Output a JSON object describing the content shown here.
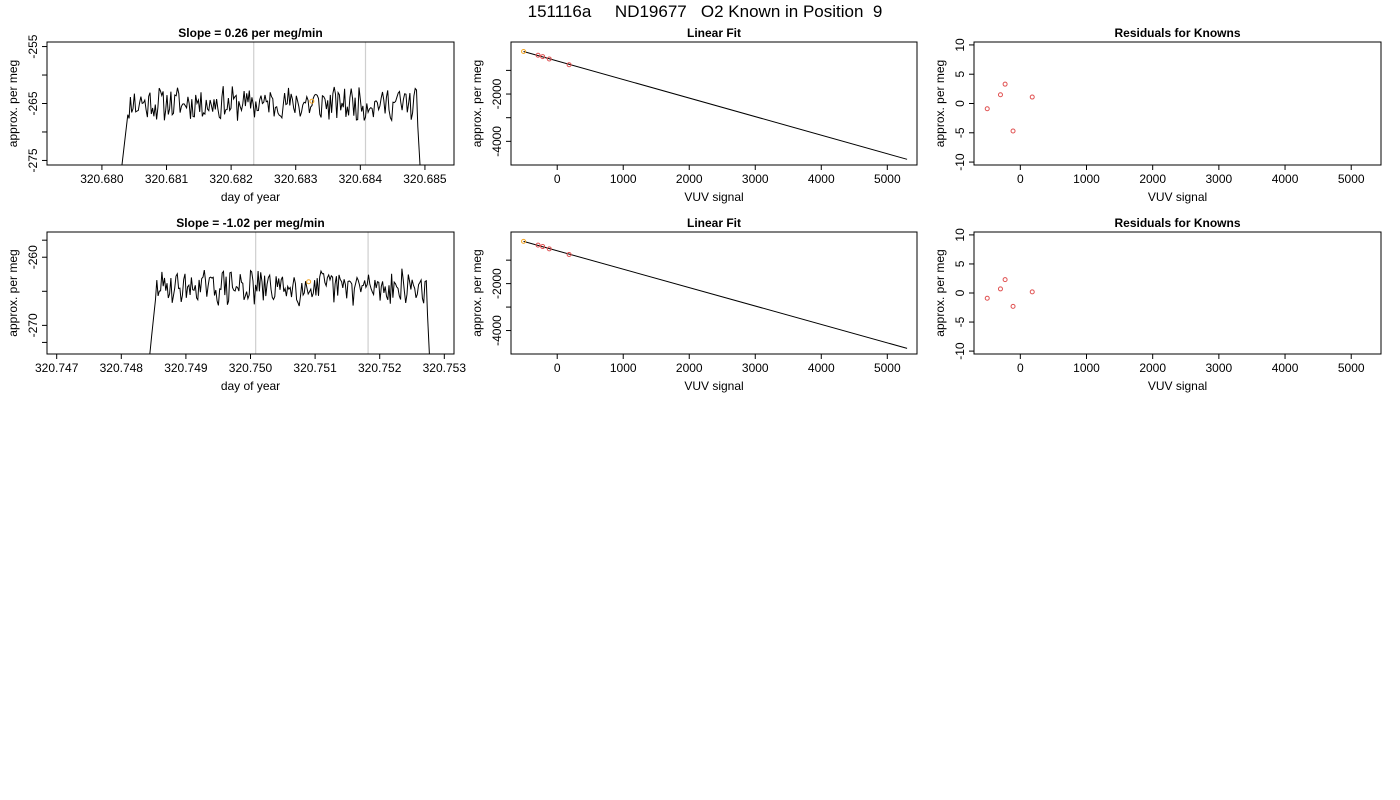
{
  "page_title": "151116a     ND19677   O2 Known in Position  9",
  "colors": {
    "trace": "#000000",
    "marker_orange": "#f5a623",
    "marker_red": "#e05050",
    "vline": "#cfcfcf",
    "fit_line": "#000000"
  },
  "chart_data": [
    {
      "id": "r1-time",
      "type": "line",
      "title": "Slope =  0.26  per meg/min",
      "xlabel": "day of year",
      "ylabel": "approx. per meg",
      "xlim": [
        320.67915,
        320.68545
      ],
      "ylim": [
        -275.8,
        -254.2
      ],
      "xticks": [
        320.68,
        320.681,
        320.682,
        320.683,
        320.684,
        320.685
      ],
      "xtick_labels": [
        "320.680",
        "320.681",
        "320.682",
        "320.683",
        "320.684",
        "320.685"
      ],
      "yticks": [
        -255,
        -265,
        -275
      ],
      "ytick_labels": [
        "-255",
        "-265",
        "-275"
      ],
      "yminor_ticks": [
        -260,
        -270
      ],
      "vlines": [
        320.68235,
        320.68408
      ],
      "trace_seed": 11,
      "trace": {
        "x_start": 320.6803,
        "x_end": 320.68495,
        "n": 230,
        "mean": -265.0,
        "amp": 2.6
      },
      "highlight_point": {
        "x": 320.68325,
        "y": -264.6
      }
    },
    {
      "id": "r1-fit",
      "type": "scatter",
      "title": "Linear Fit",
      "xlabel": "VUV signal",
      "ylabel": "approx. per meg",
      "xlim": [
        -700,
        5450
      ],
      "ylim": [
        -5000,
        200
      ],
      "xticks": [
        0,
        1000,
        2000,
        3000,
        4000,
        5000
      ],
      "xtick_labels": [
        "0",
        "1000",
        "2000",
        "3000",
        "4000",
        "5000"
      ],
      "yticks": [
        -2000,
        -4000
      ],
      "ytick_labels": [
        "-2000",
        "-4000"
      ],
      "yminor_ticks": [
        -1000,
        -3000
      ],
      "points": [
        {
          "x": -510,
          "y": -200,
          "color": "orange"
        },
        {
          "x": -290,
          "y": -360,
          "color": "red"
        },
        {
          "x": -220,
          "y": -420,
          "color": "red"
        },
        {
          "x": -120,
          "y": -520,
          "color": "red"
        },
        {
          "x": 180,
          "y": -760,
          "color": "red"
        }
      ],
      "fit_line": {
        "x1": -510,
        "y1": -200,
        "x2": 5300,
        "y2": -4760
      }
    },
    {
      "id": "r1-resid",
      "type": "scatter",
      "title": "Residuals for Knowns",
      "xlabel": "VUV signal",
      "ylabel": "approx. per meg",
      "xlim": [
        -700,
        5450
      ],
      "ylim": [
        -10.5,
        10.5
      ],
      "xticks": [
        0,
        1000,
        2000,
        3000,
        4000,
        5000
      ],
      "xtick_labels": [
        "0",
        "1000",
        "2000",
        "3000",
        "4000",
        "5000"
      ],
      "yticks": [
        10,
        5,
        0,
        -5,
        -10
      ],
      "ytick_labels": [
        "10",
        "5",
        "0",
        "-5",
        "-10"
      ],
      "points": [
        {
          "x": -500,
          "y": -0.9,
          "color": "red"
        },
        {
          "x": -300,
          "y": 1.5,
          "color": "red"
        },
        {
          "x": -230,
          "y": 3.3,
          "color": "red"
        },
        {
          "x": -110,
          "y": -4.7,
          "color": "red"
        },
        {
          "x": 180,
          "y": 1.1,
          "color": "red"
        }
      ]
    },
    {
      "id": "r2-time",
      "type": "line",
      "title": "Slope =  -1.02  per meg/min",
      "xlabel": "day of year",
      "ylabel": "approx. per meg",
      "xlim": [
        320.74685,
        320.75315
      ],
      "ylim": [
        -274.2,
        -256.3
      ],
      "xticks": [
        320.747,
        320.748,
        320.749,
        320.75,
        320.751,
        320.752,
        320.753
      ],
      "xtick_labels": [
        "320.747",
        "320.748",
        "320.749",
        "320.750",
        "320.751",
        "320.752",
        "320.753"
      ],
      "yticks": [
        -260,
        -270
      ],
      "ytick_labels": [
        "-260",
        "-270"
      ],
      "yminor_ticks": [
        -257.5,
        -265,
        -272.5
      ],
      "vlines": [
        320.75008,
        320.75182
      ],
      "trace_seed": 29,
      "trace": {
        "x_start": 320.74843,
        "x_end": 320.7528,
        "n": 220,
        "mean": -264.4,
        "amp": 2.2
      },
      "highlight_point": {
        "x": 320.7509,
        "y": -263.6
      }
    },
    {
      "id": "r2-fit",
      "type": "scatter",
      "title": "Linear Fit",
      "xlabel": "VUV signal",
      "ylabel": "approx. per meg",
      "xlim": [
        -700,
        5450
      ],
      "ylim": [
        -5000,
        200
      ],
      "xticks": [
        0,
        1000,
        2000,
        3000,
        4000,
        5000
      ],
      "xtick_labels": [
        "0",
        "1000",
        "2000",
        "3000",
        "4000",
        "5000"
      ],
      "yticks": [
        -2000,
        -4000
      ],
      "ytick_labels": [
        "-2000",
        "-4000"
      ],
      "yminor_ticks": [
        -1000,
        -3000
      ],
      "points": [
        {
          "x": -510,
          "y": -200,
          "color": "orange"
        },
        {
          "x": -290,
          "y": -360,
          "color": "red"
        },
        {
          "x": -220,
          "y": -420,
          "color": "red"
        },
        {
          "x": -120,
          "y": -520,
          "color": "red"
        },
        {
          "x": 180,
          "y": -760,
          "color": "red"
        }
      ],
      "fit_line": {
        "x1": -510,
        "y1": -200,
        "x2": 5300,
        "y2": -4760
      }
    },
    {
      "id": "r2-resid",
      "type": "scatter",
      "title": "Residuals for Knowns",
      "xlabel": "VUV signal",
      "ylabel": "approx. per meg",
      "xlim": [
        -700,
        5450
      ],
      "ylim": [
        -10.5,
        10.5
      ],
      "xticks": [
        0,
        1000,
        2000,
        3000,
        4000,
        5000
      ],
      "xtick_labels": [
        "0",
        "1000",
        "2000",
        "3000",
        "4000",
        "5000"
      ],
      "yticks": [
        10,
        5,
        0,
        -5,
        -10
      ],
      "ytick_labels": [
        "10",
        "5",
        "0",
        "-5",
        "-10"
      ],
      "points": [
        {
          "x": -500,
          "y": -0.9,
          "color": "red"
        },
        {
          "x": -300,
          "y": 0.7,
          "color": "red"
        },
        {
          "x": -230,
          "y": 2.3,
          "color": "red"
        },
        {
          "x": -110,
          "y": -2.3,
          "color": "red"
        },
        {
          "x": 180,
          "y": 0.2,
          "color": "red"
        }
      ]
    }
  ]
}
